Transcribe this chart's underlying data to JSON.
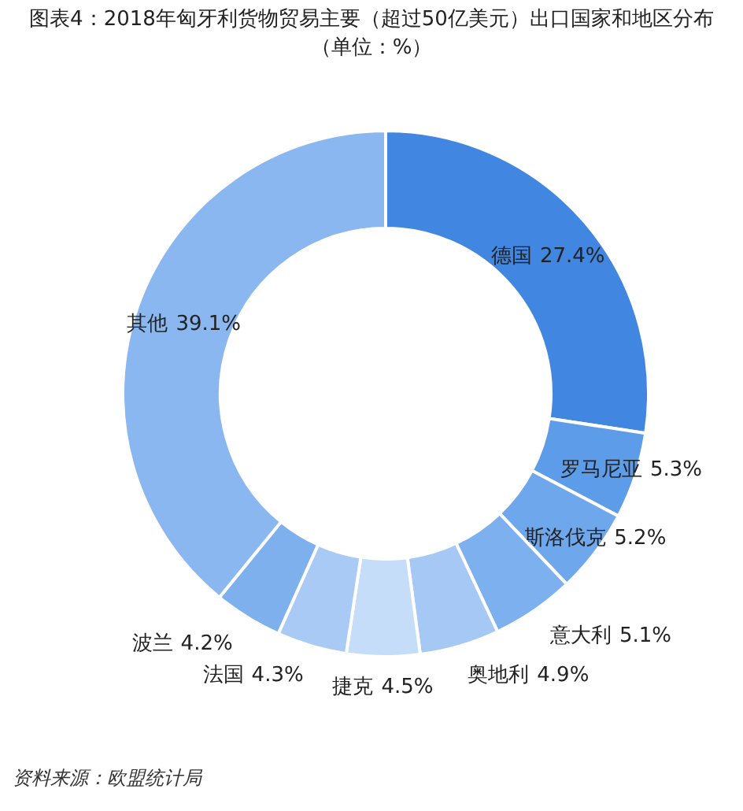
{
  "chart_data": {
    "type": "donut",
    "title": "图表4：2018年匈牙利货物贸易主要（超过50亿美元）出口国家和地区分布（单位：%）",
    "categories": [
      "德国",
      "罗马尼亚",
      "斯洛伐克",
      "意大利",
      "奥地利",
      "捷克",
      "法国",
      "波兰",
      "其他"
    ],
    "values": [
      27.4,
      5.3,
      5.2,
      5.1,
      4.9,
      4.5,
      4.3,
      4.2,
      39.1
    ],
    "colors": [
      "#4187e2",
      "#5c9ce9",
      "#6ea7ec",
      "#7db0ef",
      "#a6c8f5",
      "#c6ddf9",
      "#a9caf4",
      "#7eb0ee",
      "#8ab7f0"
    ],
    "value_labels": [
      "27.4%",
      "5.3%",
      "5.2%",
      "5.1%",
      "4.9%",
      "4.5%",
      "4.3%",
      "4.2%",
      "39.1%"
    ],
    "legend": false,
    "annotations": [
      "资料来源：欧盟统计局"
    ]
  }
}
